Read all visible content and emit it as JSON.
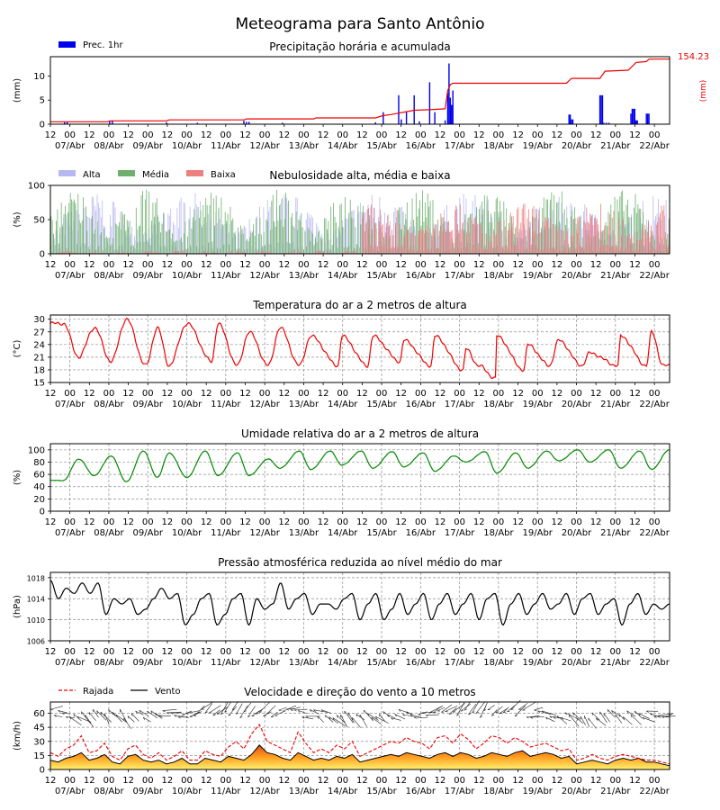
{
  "page_title": "Meteograma para Santo Antônio",
  "x_axis": {
    "tick_labels": [
      "12",
      "00",
      "12",
      "00",
      "12",
      "00",
      "12",
      "00",
      "12",
      "00",
      "12",
      "00",
      "12",
      "00",
      "12",
      "00",
      "12",
      "00",
      "12",
      "00",
      "12",
      "00",
      "12",
      "00",
      "12",
      "00",
      "12",
      "00",
      "12",
      "00",
      "12",
      "00"
    ],
    "date_labels": [
      "07/Abr",
      "08/Abr",
      "09/Abr",
      "10/Abr",
      "11/Abr",
      "12/Abr",
      "13/Abr",
      "14/Abr",
      "15/Abr",
      "16/Abr",
      "17/Abr",
      "18/Abr",
      "19/Abr",
      "20/Abr",
      "21/Abr",
      "22/Abr"
    ]
  },
  "colors": {
    "precip_bar": "#0000ee",
    "precip_acc": "#ee0000",
    "cloud_high": "#b8b8f0",
    "cloud_mid": "#6fb06f",
    "cloud_low": "#ee7f7f",
    "temperature": "#ee0000",
    "humidity": "#008800",
    "pressure": "#000000",
    "gust": "#ee0000",
    "wind": "#000000",
    "grid": "#909090"
  },
  "chart_data": [
    {
      "type": "bar",
      "title": "Precipitação horária e acumulada",
      "ylabel": "(mm)",
      "ylabel_right": "(mm)",
      "ylim": [
        0,
        14
      ],
      "yticks": [
        "0",
        "5",
        "10"
      ],
      "legend": [
        {
          "name": "Prec. 1hr"
        }
      ],
      "accumulated_max_label": "154.23",
      "hourly": [
        {
          "h": 11,
          "v": 0.4
        },
        {
          "h": 13,
          "v": 0.5
        },
        {
          "h": 46,
          "v": 0.6
        },
        {
          "h": 48,
          "v": 0.8
        },
        {
          "h": 90,
          "v": 0.4
        },
        {
          "h": 114,
          "v": 0.3
        },
        {
          "h": 150,
          "v": 0.7
        },
        {
          "h": 152,
          "v": 0.5
        },
        {
          "h": 154,
          "v": 0.5
        },
        {
          "h": 180,
          "v": 0.3
        },
        {
          "h": 252,
          "v": 0.4
        },
        {
          "h": 258,
          "v": 2.5
        },
        {
          "h": 270,
          "v": 6.0
        },
        {
          "h": 272,
          "v": 1.0
        },
        {
          "h": 276,
          "v": 2.5
        },
        {
          "h": 282,
          "v": 6.0
        },
        {
          "h": 286,
          "v": 0.6
        },
        {
          "h": 294,
          "v": 8.7
        },
        {
          "h": 298,
          "v": 2.5
        },
        {
          "h": 306,
          "v": 0.8
        },
        {
          "h": 308,
          "v": 6.5
        },
        {
          "h": 309,
          "v": 12.6
        },
        {
          "h": 310,
          "v": 5.5
        },
        {
          "h": 312,
          "v": 7.0
        },
        {
          "h": 311,
          "v": 4.0
        },
        {
          "h": 402,
          "v": 2.0
        },
        {
          "h": 403,
          "v": 2.0
        },
        {
          "h": 404,
          "v": 1.0
        },
        {
          "h": 405,
          "v": 1.0
        },
        {
          "h": 426,
          "v": 6.0
        },
        {
          "h": 427,
          "v": 6.0
        },
        {
          "h": 428,
          "v": 6.0
        },
        {
          "h": 429,
          "v": 0.3
        },
        {
          "h": 431,
          "v": 0.3
        },
        {
          "h": 433,
          "v": 0.3
        },
        {
          "h": 450,
          "v": 2.2
        },
        {
          "h": 451,
          "v": 3.2
        },
        {
          "h": 452,
          "v": 3.2
        },
        {
          "h": 453,
          "v": 3.2
        },
        {
          "h": 454,
          "v": 0.8
        },
        {
          "h": 455,
          "v": 0.8
        },
        {
          "h": 462,
          "v": 2.2
        },
        {
          "h": 463,
          "v": 2.2
        },
        {
          "h": 464,
          "v": 2.2
        }
      ],
      "accumulated": [
        [
          0,
          0.5
        ],
        [
          44,
          0.5
        ],
        [
          46,
          0.7
        ],
        [
          90,
          0.7
        ],
        [
          92,
          0.9
        ],
        [
          150,
          0.9
        ],
        [
          152,
          1.1
        ],
        [
          204,
          1.1
        ],
        [
          206,
          1.3
        ],
        [
          252,
          1.3
        ],
        [
          258,
          1.8
        ],
        [
          264,
          2.0
        ],
        [
          270,
          2.3
        ],
        [
          276,
          2.6
        ],
        [
          282,
          2.9
        ],
        [
          294,
          3.0
        ],
        [
          306,
          3.2
        ],
        [
          308,
          7.0
        ],
        [
          310,
          8.2
        ],
        [
          312,
          8.5
        ],
        [
          400,
          8.5
        ],
        [
          404,
          9.5
        ],
        [
          426,
          9.5
        ],
        [
          430,
          11.0
        ],
        [
          448,
          11.2
        ],
        [
          454,
          12.8
        ],
        [
          462,
          13.0
        ],
        [
          464,
          13.5
        ],
        [
          480,
          13.5
        ]
      ]
    },
    {
      "type": "bar",
      "title": "Nebulosidade alta, média e baixa",
      "ylabel": "(%)",
      "ylim": [
        0,
        100
      ],
      "yticks": [
        "0",
        "50",
        "100"
      ],
      "legend": [
        {
          "name": "Alta"
        },
        {
          "name": "Média"
        },
        {
          "name": "Baixa"
        }
      ],
      "series_keys": [
        "high",
        "mid",
        "low"
      ]
    },
    {
      "type": "line",
      "title": "Temperatura do ar a 2 metros de altura",
      "ylabel": "(°C)",
      "ylim": [
        15,
        31
      ],
      "yticks": [
        "15",
        "18",
        "21",
        "24",
        "27",
        "30"
      ],
      "min_hour": [
        22,
        47,
        74,
        92,
        125,
        145,
        169,
        193,
        223,
        246,
        271,
        295,
        320,
        332,
        345,
        367,
        387,
        412,
        440,
        462,
        475
      ],
      "min": [
        21,
        20,
        19,
        19,
        20,
        19,
        19,
        19,
        19,
        19,
        20,
        19,
        18,
        19,
        16,
        18,
        19,
        19,
        19,
        19,
        19
      ],
      "max_hour": [
        10,
        34,
        59,
        83,
        106,
        130,
        154,
        178,
        202,
        226,
        250,
        274,
        298,
        322,
        346,
        370,
        394,
        418,
        442,
        466
      ],
      "max": [
        29,
        28,
        30,
        28,
        29,
        29,
        27,
        28,
        26,
        26,
        26,
        25,
        26,
        23,
        26,
        24,
        25,
        22,
        26,
        27
      ]
    },
    {
      "type": "line",
      "title": "Umidade relativa do ar a 2 metros de altura",
      "ylabel": "(%)",
      "ylim": [
        0,
        110
      ],
      "yticks": [
        "0",
        "20",
        "40",
        "60",
        "80",
        "100"
      ],
      "min_hour": [
        10,
        34,
        59,
        83,
        106,
        130,
        154,
        178,
        202,
        226,
        250,
        274,
        298,
        322,
        346,
        370,
        394,
        418,
        442,
        466
      ],
      "min": [
        50,
        58,
        48,
        55,
        55,
        58,
        58,
        70,
        68,
        75,
        70,
        72,
        65,
        80,
        62,
        70,
        82,
        80,
        70,
        68
      ],
      "max_hour": [
        22,
        47,
        72,
        92,
        120,
        145,
        169,
        193,
        217,
        241,
        265,
        289,
        313,
        337,
        361,
        385,
        409,
        433,
        457,
        480
      ],
      "max": [
        85,
        90,
        98,
        95,
        98,
        95,
        85,
        98,
        98,
        98,
        97,
        95,
        90,
        97,
        95,
        98,
        100,
        100,
        98,
        100
      ]
    },
    {
      "type": "line",
      "title": "Pressão atmosférica reduzida ao nível médio do mar",
      "ylabel": "(hPa)",
      "ylim": [
        1006,
        1019
      ],
      "yticks": [
        "1006",
        "1010",
        "1014",
        "1018"
      ],
      "values": [
        1017.5,
        1014,
        1016,
        1015,
        1017,
        1015,
        1017,
        1011,
        1014,
        1013,
        1014,
        1011,
        1012,
        1014,
        1016,
        1014,
        1015,
        1009,
        1011,
        1014,
        1015,
        1009,
        1011,
        1014,
        1015,
        1009,
        1014,
        1012,
        1013,
        1017,
        1012,
        1014,
        1015,
        1011,
        1013,
        1013,
        1012,
        1014,
        1015,
        1010,
        1013,
        1015,
        1010,
        1012,
        1015,
        1011,
        1013,
        1015,
        1010,
        1013,
        1015,
        1011,
        1013,
        1015,
        1010,
        1014,
        1015,
        1009,
        1013,
        1015,
        1011,
        1013,
        1015,
        1012,
        1013,
        1015,
        1011,
        1014,
        1015,
        1011,
        1013,
        1014,
        1009,
        1013,
        1015,
        1011,
        1013,
        1012,
        1013
      ]
    },
    {
      "type": "area",
      "title": "Velocidade e direção do vento a 10 metros",
      "ylabel": "(km/h)",
      "ylim": [
        0,
        72
      ],
      "yticks": [
        "0",
        "15",
        "30",
        "45",
        "60"
      ],
      "legend": [
        {
          "name": "Rajada"
        },
        {
          "name": "Vento"
        }
      ],
      "wind": [
        10,
        8,
        12,
        14,
        18,
        10,
        12,
        16,
        8,
        6,
        14,
        16,
        10,
        8,
        10,
        6,
        8,
        12,
        6,
        6,
        12,
        10,
        8,
        14,
        12,
        10,
        16,
        26,
        18,
        16,
        12,
        10,
        18,
        14,
        10,
        12,
        10,
        14,
        12,
        16,
        8,
        10,
        12,
        14,
        16,
        14,
        18,
        16,
        14,
        12,
        16,
        18,
        14,
        18,
        16,
        12,
        14,
        18,
        16,
        14,
        18,
        20,
        14,
        16,
        18,
        16,
        12,
        14,
        6,
        8,
        10,
        8,
        6,
        10,
        12,
        10,
        12,
        8,
        8,
        6,
        4
      ],
      "gust": [
        18,
        14,
        22,
        26,
        36,
        18,
        20,
        28,
        14,
        10,
        22,
        26,
        16,
        12,
        18,
        10,
        14,
        20,
        10,
        10,
        20,
        16,
        14,
        24,
        30,
        22,
        38,
        48,
        30,
        26,
        22,
        18,
        40,
        28,
        18,
        22,
        18,
        26,
        22,
        30,
        14,
        18,
        22,
        26,
        30,
        28,
        34,
        30,
        28,
        22,
        34,
        36,
        28,
        38,
        32,
        22,
        28,
        36,
        34,
        28,
        34,
        30,
        24,
        26,
        28,
        24,
        20,
        22,
        10,
        12,
        16,
        12,
        10,
        14,
        16,
        14,
        12,
        10,
        10,
        8,
        6
      ]
    }
  ]
}
